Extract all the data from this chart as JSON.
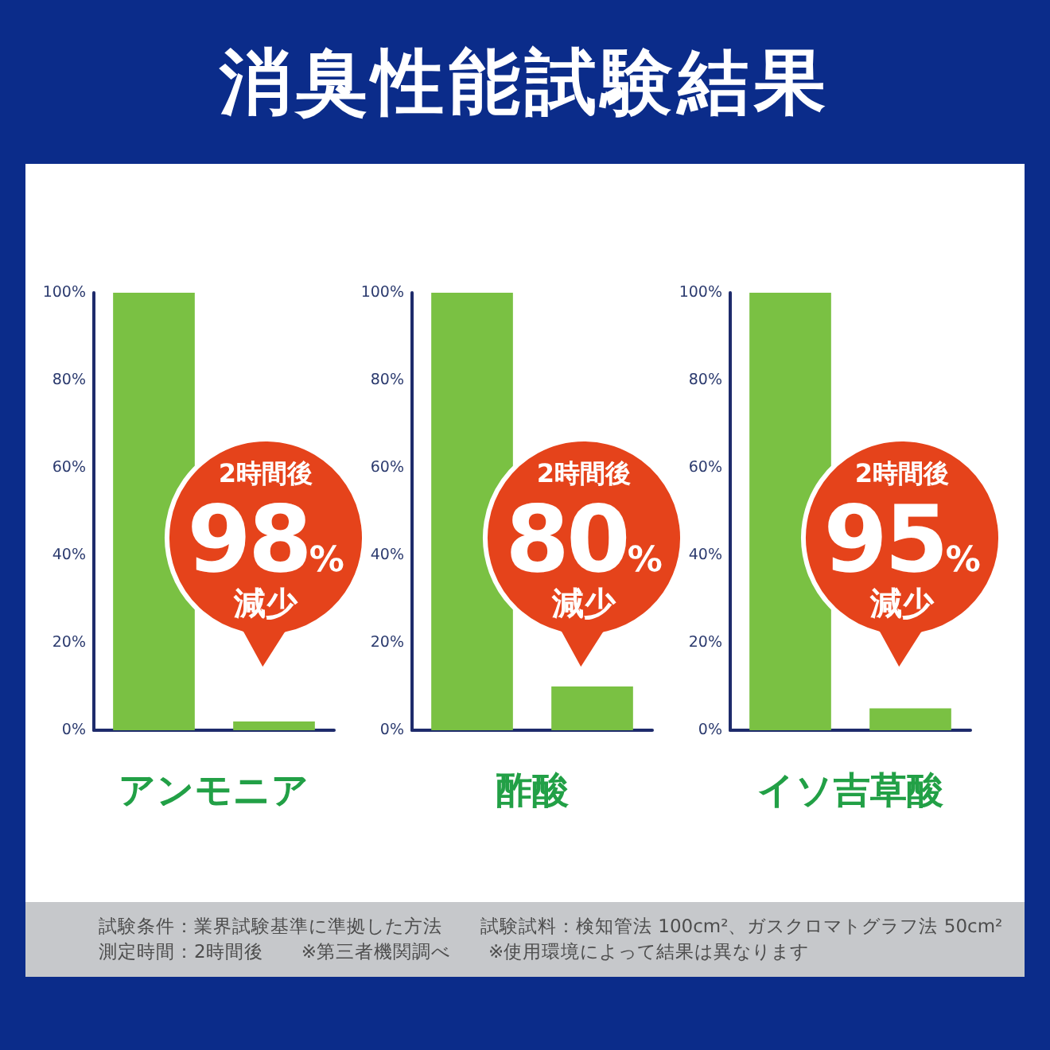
{
  "chart_data": [
    {
      "type": "bar",
      "title": "消臭性能試験結果",
      "xlabel": "アンモニア",
      "categories": [
        null,
        null
      ],
      "values": [
        100,
        2
      ],
      "color": "#7ac143",
      "ylim": [
        0,
        100
      ],
      "yticks": [
        {
          "value": 0,
          "label": "0%"
        },
        {
          "value": 20,
          "label": "20%"
        },
        {
          "value": 40,
          "label": "40%"
        },
        {
          "value": 60,
          "label": "60%"
        },
        {
          "value": 80,
          "label": "80%"
        },
        {
          "value": 100,
          "label": "100%"
        }
      ],
      "annotations": [
        "2時間後",
        "98%",
        "減少"
      ]
    },
    {
      "type": "bar",
      "xlabel": "酢酸",
      "categories": [
        null,
        null
      ],
      "values": [
        100,
        10
      ],
      "color": "#7ac143",
      "ylim": [
        0,
        100
      ],
      "yticks": [
        {
          "value": 0,
          "label": "0%"
        },
        {
          "value": 20,
          "label": "20%"
        },
        {
          "value": 40,
          "label": "40%"
        },
        {
          "value": 60,
          "label": "60%"
        },
        {
          "value": 80,
          "label": "80%"
        },
        {
          "value": 100,
          "label": "100%"
        }
      ],
      "annotations": [
        "2時間後",
        "80%",
        "減少"
      ]
    },
    {
      "type": "bar",
      "xlabel": "イソ吉草酸",
      "categories": [
        null,
        null
      ],
      "values": [
        100,
        5
      ],
      "color": "#7ac143",
      "ylim": [
        0,
        100
      ],
      "yticks": [
        {
          "value": 0,
          "label": "0%"
        },
        {
          "value": 20,
          "label": "20%"
        },
        {
          "value": 40,
          "label": "40%"
        },
        {
          "value": 60,
          "label": "60%"
        },
        {
          "value": 80,
          "label": "80%"
        },
        {
          "value": 100,
          "label": "100%"
        }
      ],
      "annotations": [
        "2時間後",
        "95%",
        "減少"
      ]
    },
    {
      "type": "other",
      "annotations": [
        "試験条件：業界試験基準に準拠した方法　　試験試料：検知管法 100cm²、ガスクロマトグラフ法 50cm²",
        "測定時間：2時間後　　※第三者機関調べ　　※使用環境によって結果は異なります"
      ]
    }
  ]
}
